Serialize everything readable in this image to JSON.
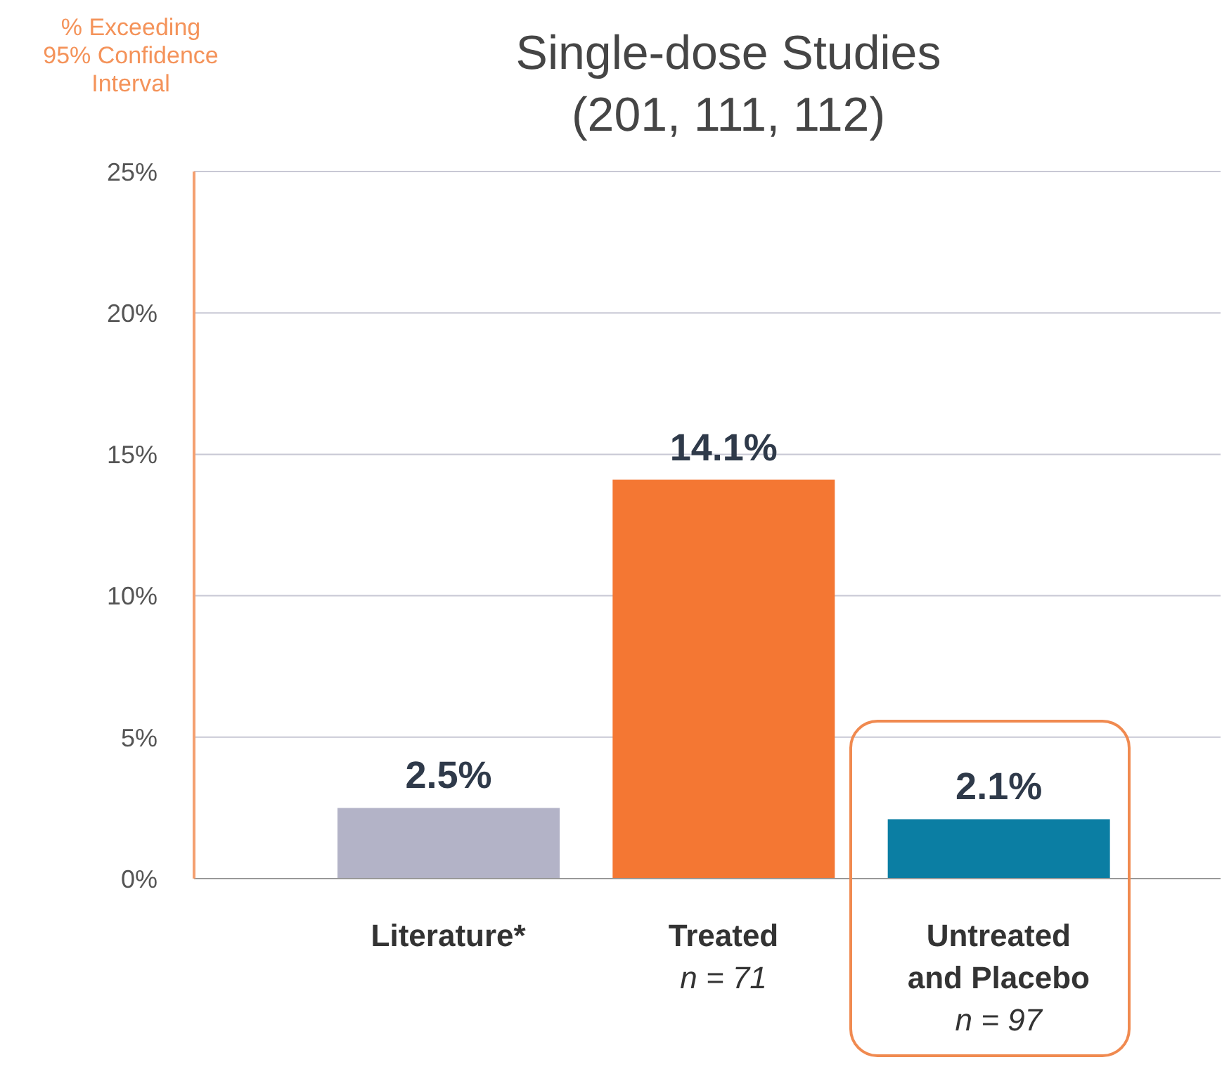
{
  "chart_data": {
    "type": "bar",
    "title": "Single-dose Studies\n(201, 111, 112)",
    "ylabel": "% Exceeding\n95% Confidence\nInterval",
    "categories": [
      "Literature*",
      "Treated\nn = 71",
      "Untreated\nand Placebo\nn = 97"
    ],
    "values": [
      2.5,
      14.1,
      2.1
    ],
    "colors": [
      "#b3b3c7",
      "#f47733",
      "#0b7ea3"
    ],
    "value_labels": [
      "2.5%",
      "14.1%",
      "2.1%"
    ],
    "ylim": [
      0,
      25
    ],
    "yticks": [
      {
        "value": 0,
        "label": "0%"
      },
      {
        "value": 5,
        "label": "5%"
      },
      {
        "value": 10,
        "label": "10%"
      },
      {
        "value": 15,
        "label": "15%"
      },
      {
        "value": 20,
        "label": "20%"
      },
      {
        "value": 25,
        "label": "25%"
      }
    ],
    "grid": "y"
  }
}
